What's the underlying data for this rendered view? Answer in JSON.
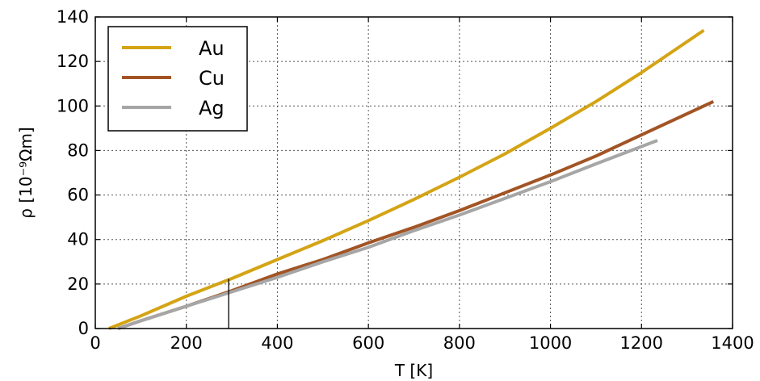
{
  "chart_data": {
    "type": "line",
    "xlabel": "T [K]",
    "ylabel": "ρ [10⁻⁹Ωm]",
    "xlim": [
      0,
      1400
    ],
    "ylim": [
      0,
      140
    ],
    "xticks": [
      0,
      200,
      400,
      600,
      800,
      1000,
      1200,
      1400
    ],
    "yticks": [
      0,
      20,
      40,
      60,
      80,
      100,
      120,
      140
    ],
    "grid": true,
    "grid_style": "dotted",
    "legend_position": "top-left",
    "series": [
      {
        "name": "Au",
        "color": "#d4a415",
        "x": [
          30,
          100,
          200,
          300,
          400,
          500,
          600,
          700,
          800,
          900,
          1000,
          1100,
          1200,
          1337
        ],
        "y": [
          0,
          5.7,
          14.5,
          22.5,
          31,
          39.5,
          48.5,
          58,
          68,
          78.5,
          90,
          102,
          115,
          134
        ]
      },
      {
        "name": "Cu",
        "color": "#a25424",
        "x": [
          50,
          100,
          200,
          300,
          400,
          500,
          600,
          700,
          800,
          900,
          1000,
          1100,
          1200,
          1358
        ],
        "y": [
          0,
          3.5,
          10,
          17,
          24.5,
          31,
          38.5,
          45.5,
          53,
          61,
          69,
          77.5,
          87,
          102
        ]
      },
      {
        "name": "Ag",
        "color": "#a6a6a6",
        "x": [
          50,
          100,
          200,
          300,
          400,
          500,
          600,
          700,
          800,
          900,
          1000,
          1100,
          1235
        ],
        "y": [
          0,
          3.5,
          10,
          16.5,
          23,
          30,
          36.5,
          44,
          51,
          58.5,
          66,
          74,
          84.5
        ]
      }
    ],
    "annotations": [
      {
        "type": "vertical-marker",
        "x": 293,
        "y_from": 0,
        "y_to": 22.3,
        "color": "#000000"
      }
    ]
  }
}
